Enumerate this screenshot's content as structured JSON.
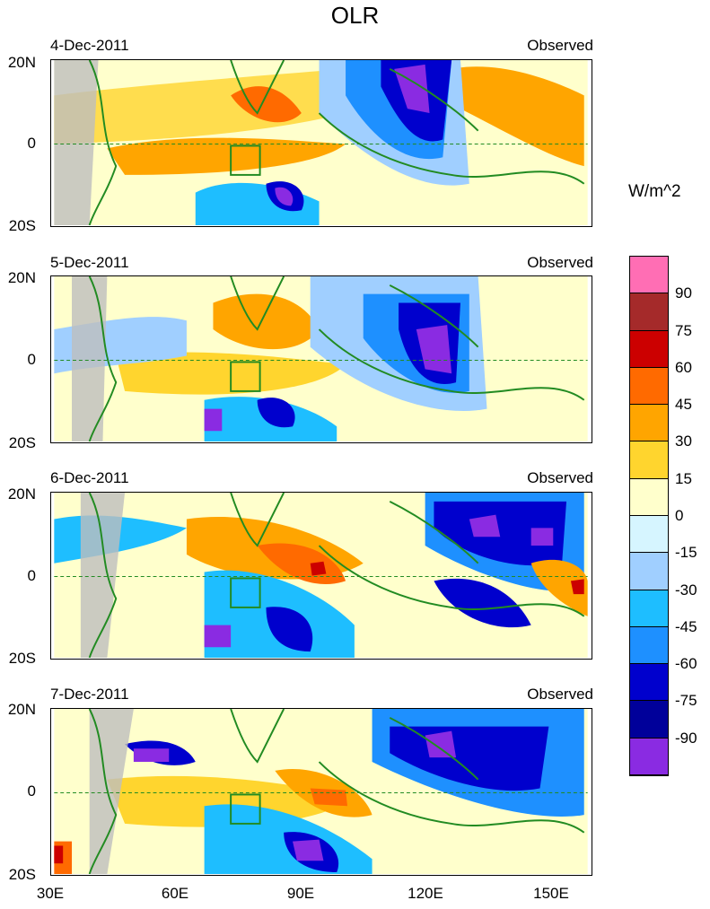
{
  "title": "OLR",
  "units": "W/m^2",
  "panels": [
    {
      "date": "4-Dec-2011",
      "label": "Observed"
    },
    {
      "date": "5-Dec-2011",
      "label": "Observed"
    },
    {
      "date": "6-Dec-2011",
      "label": "Observed"
    },
    {
      "date": "7-Dec-2011",
      "label": "Observed"
    }
  ],
  "lat_labels": [
    "20N",
    "0",
    "20S"
  ],
  "lon_labels": [
    "30E",
    "60E",
    "90E",
    "120E",
    "150E"
  ],
  "colorbar": {
    "labels": [
      "90",
      "75",
      "60",
      "45",
      "30",
      "15",
      "0",
      "-15",
      "-30",
      "-45",
      "-60",
      "-75",
      "-90"
    ],
    "colors": [
      "#ff6eb4",
      "#a52a2a",
      "#cc0000",
      "#ff6a00",
      "#ffa500",
      "#ffd52e",
      "#ffffcc",
      "#d6f5ff",
      "#a0cfff",
      "#1ebeff",
      "#1e90ff",
      "#0000cd",
      "#00009a",
      "#8a2be2"
    ]
  },
  "map": {
    "lon_range": [
      30,
      160
    ],
    "lat_range": [
      -20,
      20
    ],
    "land_color": "#228b22",
    "missing_color": "#bebebe"
  }
}
